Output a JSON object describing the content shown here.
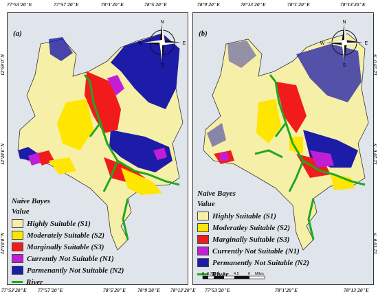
{
  "ticks_top": [
    "77°53'20\"E",
    "77°57'20\"E",
    "78°1'20\"E",
    "78°5'20\"E",
    "78°9'20\"E",
    "78°13'20\"E"
  ],
  "ticks_bottom": [
    "77°53'20\"E",
    "77°57'20\"E",
    "78°1'20\"E",
    "78°5'20\"E",
    "78°9'20\"E",
    "78°13'20\"E"
  ],
  "ticks_side": [
    "12°59'0\"N",
    "12°20'0\"N",
    "12°10'0\"N"
  ],
  "compass": {
    "n": "N",
    "s": "S",
    "e": "E",
    "w": "W"
  },
  "panels": [
    {
      "label": "(a)"
    },
    {
      "label": "(b)"
    }
  ],
  "legend": {
    "method": "Naive Bayes",
    "value_title": "Value",
    "panel_a": [
      {
        "label": "Highly Suitable (S1)",
        "color": "#f6efa8"
      },
      {
        "label": "Moderately Suitable (S2)",
        "color": "#ffe600"
      },
      {
        "label": "Marginally Suitable (S3)",
        "color": "#f21b1b"
      },
      {
        "label": "Currently Not Suitable (N1)",
        "color": "#c21ed6"
      },
      {
        "label": "Parmenantly Not Suitable (N2)",
        "color": "#1c1ca8"
      }
    ],
    "panel_b": [
      {
        "label": "Highly Suitable (S1)",
        "color": "#f6efa8"
      },
      {
        "label": "Moderatley Suitable (S2)",
        "color": "#ffe600"
      },
      {
        "label": "Marginally Suitable (S3)",
        "color": "#f21b1b"
      },
      {
        "label": "Currently Not Suitable (N1)",
        "color": "#c21ed6"
      },
      {
        "label": "Permanently Not Suitable (N2)",
        "color": "#1c1ca8"
      }
    ],
    "river": "River",
    "river_color": "#1fa81f"
  },
  "scalebar": {
    "ticks": [
      "0",
      "0.75",
      "1.5",
      "3",
      "4.5",
      "6"
    ],
    "unit": "Miles"
  }
}
